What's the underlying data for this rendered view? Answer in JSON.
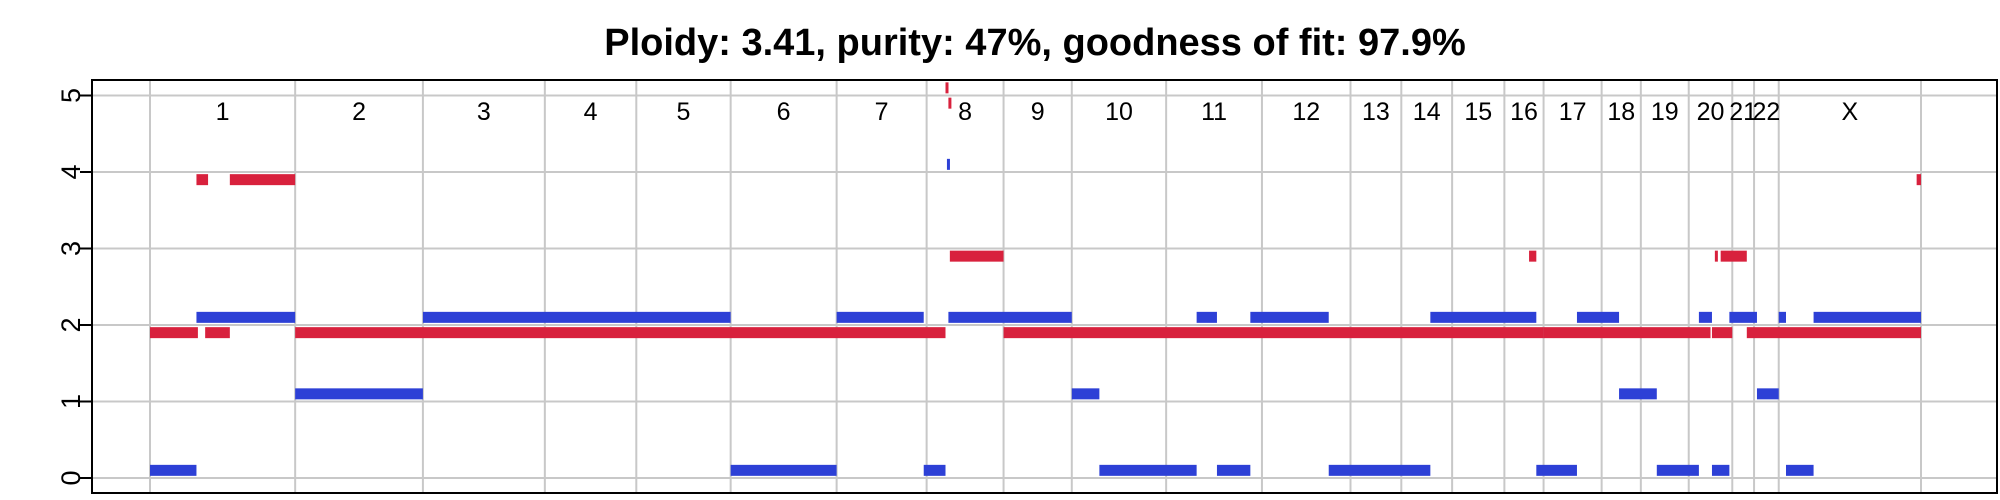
{
  "chart_data": {
    "type": "segment",
    "title": "Ploidy: 3.41, purity: 47%, goodness of fit: 97.9%",
    "xlabel": "",
    "ylabel": "",
    "ylim": [
      0,
      5
    ],
    "yticks": [
      0,
      1,
      2,
      3,
      4,
      5
    ],
    "grid": true,
    "colors": {
      "major": "#d8213d",
      "minor": "#2d40d6",
      "grid": "#c8c8c8",
      "axis": "#000000"
    },
    "chromosomes": [
      {
        "label": "1",
        "start": 0.0,
        "end": 1.0
      },
      {
        "label": "2",
        "start": 1.0,
        "end": 1.88
      },
      {
        "label": "3",
        "start": 1.88,
        "end": 2.72
      },
      {
        "label": "4",
        "start": 2.72,
        "end": 3.35
      },
      {
        "label": "5",
        "start": 3.35,
        "end": 4.0
      },
      {
        "label": "6",
        "start": 4.0,
        "end": 4.73
      },
      {
        "label": "7",
        "start": 4.73,
        "end": 5.35
      },
      {
        "label": "8",
        "start": 5.35,
        "end": 5.88
      },
      {
        "label": "9",
        "start": 5.88,
        "end": 6.35
      },
      {
        "label": "10",
        "start": 6.35,
        "end": 7.0
      },
      {
        "label": "11",
        "start": 7.0,
        "end": 7.66
      },
      {
        "label": "12",
        "start": 7.66,
        "end": 8.27
      },
      {
        "label": "13",
        "start": 8.27,
        "end": 8.62
      },
      {
        "label": "14",
        "start": 8.62,
        "end": 8.97
      },
      {
        "label": "15",
        "start": 8.97,
        "end": 9.33
      },
      {
        "label": "16",
        "start": 9.33,
        "end": 9.6
      },
      {
        "label": "17",
        "start": 9.6,
        "end": 10.0
      },
      {
        "label": "18",
        "start": 10.0,
        "end": 10.27
      },
      {
        "label": "19",
        "start": 10.27,
        "end": 10.6
      },
      {
        "label": "20",
        "start": 10.6,
        "end": 10.9
      },
      {
        "label": "21",
        "start": 10.9,
        "end": 11.05
      },
      {
        "label": "22",
        "start": 11.05,
        "end": 11.22
      },
      {
        "label": "X",
        "start": 11.22,
        "end": 12.2
      }
    ],
    "series": [
      {
        "key": "major",
        "segments": [
          {
            "start": 0.0,
            "end": 0.33,
            "cn": 1.9
          },
          {
            "start": 0.38,
            "end": 0.55,
            "cn": 1.9
          },
          {
            "start": 0.32,
            "end": 0.4,
            "cn": 3.9
          },
          {
            "start": 0.55,
            "end": 1.0,
            "cn": 3.9
          },
          {
            "start": 1.0,
            "end": 5.48,
            "cn": 1.9
          },
          {
            "start": 5.5,
            "end": 5.52,
            "cn": 4.9
          },
          {
            "start": 5.48,
            "end": 5.5,
            "cn": 5.1
          },
          {
            "start": 5.51,
            "end": 5.88,
            "cn": 2.9
          },
          {
            "start": 5.88,
            "end": 9.6,
            "cn": 1.9
          },
          {
            "start": 9.5,
            "end": 9.55,
            "cn": 2.9
          },
          {
            "start": 9.6,
            "end": 10.75,
            "cn": 1.9
          },
          {
            "start": 10.76,
            "end": 10.9,
            "cn": 1.9
          },
          {
            "start": 10.78,
            "end": 10.8,
            "cn": 2.9
          },
          {
            "start": 10.82,
            "end": 11.0,
            "cn": 2.9
          },
          {
            "start": 11.0,
            "end": 12.2,
            "cn": 1.9
          },
          {
            "start": 12.17,
            "end": 12.2,
            "cn": 3.9
          }
        ]
      },
      {
        "key": "minor",
        "segments": [
          {
            "start": 0.0,
            "end": 0.32,
            "cn": 0.1
          },
          {
            "start": 0.32,
            "end": 1.0,
            "cn": 2.1
          },
          {
            "start": 1.0,
            "end": 1.88,
            "cn": 1.1
          },
          {
            "start": 1.88,
            "end": 4.0,
            "cn": 2.1
          },
          {
            "start": 4.0,
            "end": 4.73,
            "cn": 0.1
          },
          {
            "start": 4.73,
            "end": 5.33,
            "cn": 2.1
          },
          {
            "start": 5.33,
            "end": 5.48,
            "cn": 0.1
          },
          {
            "start": 5.49,
            "end": 5.5,
            "cn": 4.1
          },
          {
            "start": 5.5,
            "end": 6.35,
            "cn": 2.1
          },
          {
            "start": 6.35,
            "end": 6.54,
            "cn": 1.1
          },
          {
            "start": 6.54,
            "end": 7.21,
            "cn": 0.1
          },
          {
            "start": 7.21,
            "end": 7.35,
            "cn": 2.1
          },
          {
            "start": 7.35,
            "end": 7.58,
            "cn": 0.1
          },
          {
            "start": 7.58,
            "end": 8.12,
            "cn": 2.1
          },
          {
            "start": 8.12,
            "end": 8.82,
            "cn": 0.1
          },
          {
            "start": 8.82,
            "end": 9.55,
            "cn": 2.1
          },
          {
            "start": 9.55,
            "end": 9.83,
            "cn": 0.1
          },
          {
            "start": 9.83,
            "end": 10.12,
            "cn": 2.1
          },
          {
            "start": 10.12,
            "end": 10.38,
            "cn": 1.1
          },
          {
            "start": 10.38,
            "end": 10.67,
            "cn": 0.1
          },
          {
            "start": 10.67,
            "end": 10.76,
            "cn": 2.1
          },
          {
            "start": 10.76,
            "end": 10.88,
            "cn": 0.1
          },
          {
            "start": 10.88,
            "end": 11.07,
            "cn": 2.1
          },
          {
            "start": 11.07,
            "end": 11.22,
            "cn": 1.1
          },
          {
            "start": 11.22,
            "end": 11.27,
            "cn": 2.1
          },
          {
            "start": 11.27,
            "end": 11.46,
            "cn": 0.1
          },
          {
            "start": 11.46,
            "end": 12.2,
            "cn": 2.1
          }
        ]
      }
    ]
  }
}
